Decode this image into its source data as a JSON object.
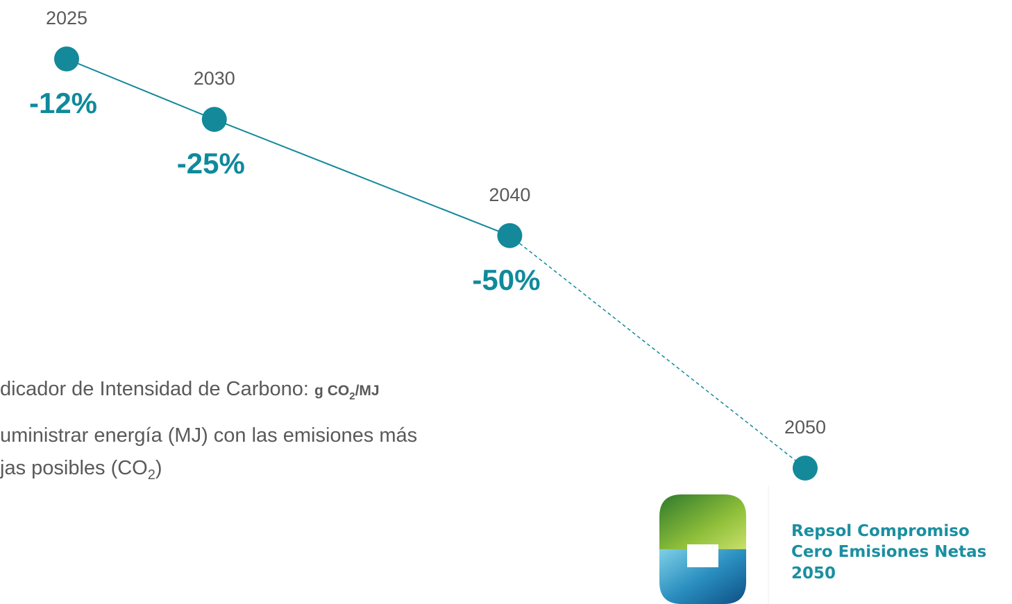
{
  "chart_data": {
    "type": "line",
    "x": [
      2025,
      2030,
      2040,
      2050
    ],
    "values": [
      -12,
      -25,
      -50,
      -100
    ],
    "value_labels": [
      "-12%",
      "-25%",
      "-50%",
      null
    ],
    "xlim": [
      2025,
      2050
    ],
    "ylim": [
      -100,
      -12
    ],
    "color": "#13899a",
    "dashed_last_segment": true,
    "notes": {
      "line1": "dicador de Intensidad de Carbono: ",
      "unit": [
        "g CO",
        "2",
        "/MJ"
      ],
      "line2": "uministrar energía (MJ) con las emisiones más",
      "line3": [
        "jas posibles (CO",
        "2",
        ")"
      ]
    },
    "logo": [
      "Repsol Compromiso",
      "Cero Emisiones Netas",
      "2050"
    ]
  }
}
